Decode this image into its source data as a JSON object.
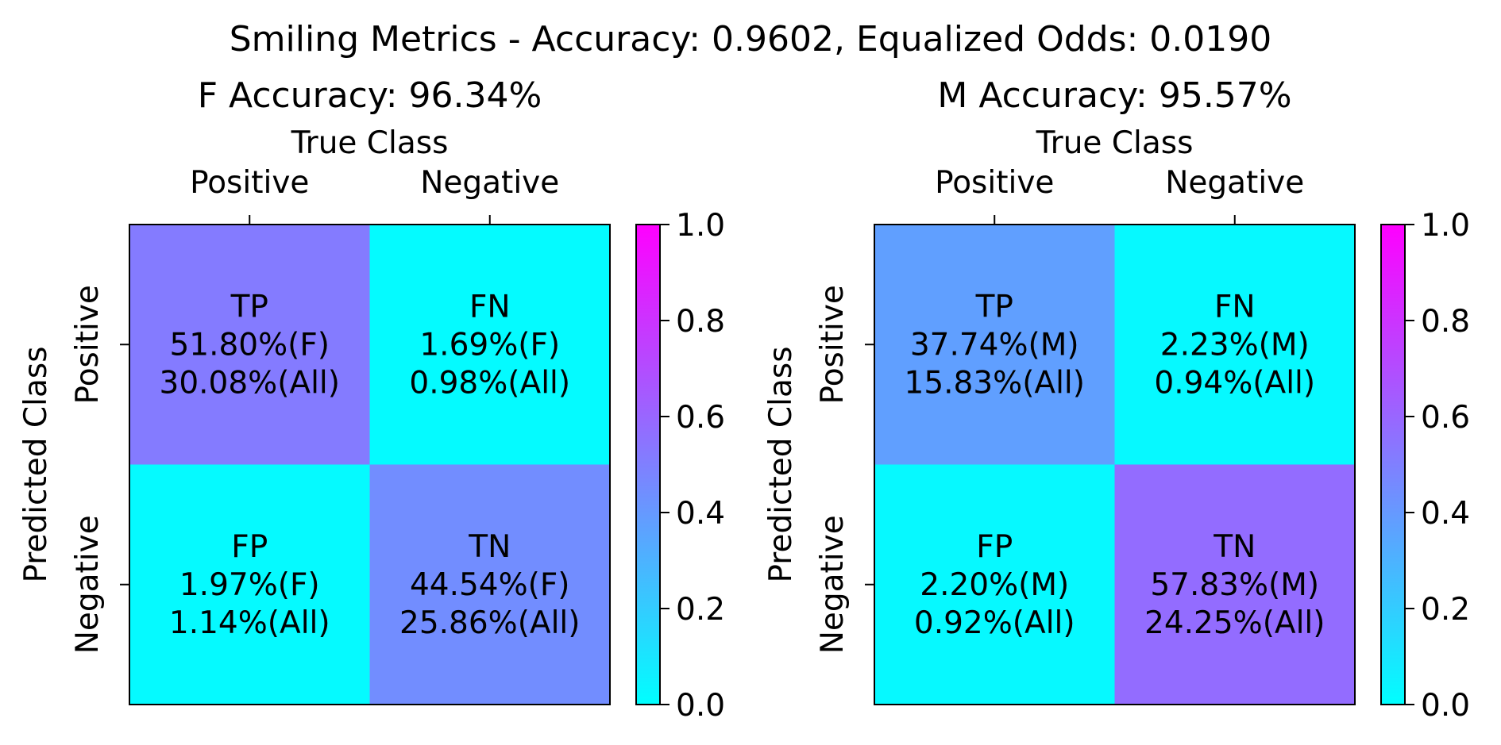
{
  "suptitle": "Smiling Metrics - Accuracy: 0.9602, Equalized Odds: 0.0190",
  "colormap": {
    "name": "cool",
    "low": "#00ffff",
    "high": "#ff00ff"
  },
  "chart_data": [
    {
      "type": "heatmap",
      "title": "F Accuracy: 96.34%",
      "xlabel": "True Class",
      "ylabel": "Predicted Class",
      "x_categories": [
        "Positive",
        "Negative"
      ],
      "y_categories": [
        "Positive",
        "Negative"
      ],
      "values": [
        [
          0.518,
          0.0169
        ],
        [
          0.0197,
          0.4454
        ]
      ],
      "cells": [
        [
          {
            "label": "TP",
            "group": "51.80%(F)",
            "all": "30.08%(All)"
          },
          {
            "label": "FN",
            "group": "1.69%(F)",
            "all": "0.98%(All)"
          }
        ],
        [
          {
            "label": "FP",
            "group": "1.97%(F)",
            "all": "1.14%(All)"
          },
          {
            "label": "TN",
            "group": "44.54%(F)",
            "all": "25.86%(All)"
          }
        ]
      ],
      "colorbar": {
        "range": [
          0,
          1
        ],
        "ticks": [
          "0.0",
          "0.2",
          "0.4",
          "0.6",
          "0.8",
          "1.0"
        ]
      }
    },
    {
      "type": "heatmap",
      "title": "M Accuracy: 95.57%",
      "xlabel": "True Class",
      "ylabel": "Predicted Class",
      "x_categories": [
        "Positive",
        "Negative"
      ],
      "y_categories": [
        "Positive",
        "Negative"
      ],
      "values": [
        [
          0.3774,
          0.0223
        ],
        [
          0.022,
          0.5783
        ]
      ],
      "cells": [
        [
          {
            "label": "TP",
            "group": "37.74%(M)",
            "all": "15.83%(All)"
          },
          {
            "label": "FN",
            "group": "2.23%(M)",
            "all": "0.94%(All)"
          }
        ],
        [
          {
            "label": "FP",
            "group": "2.20%(M)",
            "all": "0.92%(All)"
          },
          {
            "label": "TN",
            "group": "57.83%(M)",
            "all": "24.25%(All)"
          }
        ]
      ],
      "colorbar": {
        "range": [
          0,
          1
        ],
        "ticks": [
          "0.0",
          "0.2",
          "0.4",
          "0.6",
          "0.8",
          "1.0"
        ]
      }
    }
  ]
}
